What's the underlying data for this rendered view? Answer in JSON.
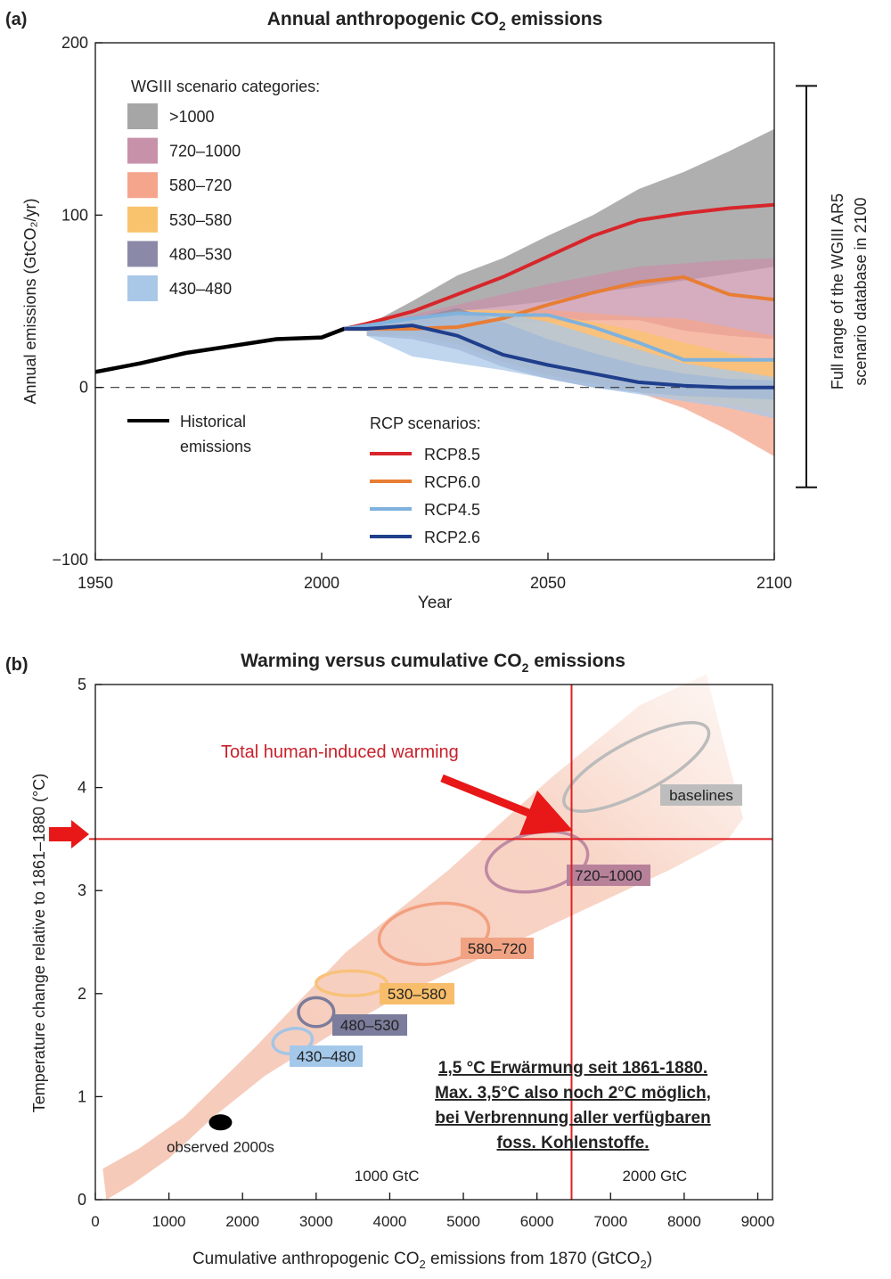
{
  "chart_data": [
    {
      "type": "line",
      "panel_label": "(a)",
      "title_main": "Annual anthropogenic CO",
      "title_sub": "2",
      "title_end": " emissions",
      "ylabel": "Annual emissions (GtCO₂/yr)",
      "xlabel": "Year",
      "xlim": [
        1950,
        2100
      ],
      "ylim": [
        -100,
        200
      ],
      "xticks": [
        "1950",
        "2000",
        "2050",
        "2100"
      ],
      "yticks": [
        "200",
        "100",
        "0",
        "−100"
      ],
      "band_legend_title": "WGIII scenario categories:",
      "bands": [
        {
          "name": ">1000",
          "color": "#a6a6a6",
          "x": [
            2010,
            2020,
            2030,
            2040,
            2050,
            2060,
            2070,
            2080,
            2090,
            2100
          ],
          "low": [
            34,
            40,
            44,
            47,
            50,
            55,
            58,
            62,
            66,
            70
          ],
          "high": [
            36,
            50,
            65,
            75,
            88,
            100,
            115,
            125,
            137,
            150
          ]
        },
        {
          "name": "720–1000",
          "color": "#c792a9",
          "x": [
            2010,
            2020,
            2030,
            2040,
            2050,
            2060,
            2070,
            2080,
            2090,
            2100
          ],
          "low": [
            33,
            35,
            37,
            38,
            38,
            39,
            39,
            33,
            30,
            28
          ],
          "high": [
            36,
            42,
            48,
            54,
            60,
            65,
            70,
            72,
            74,
            75
          ]
        },
        {
          "name": "580–720",
          "color": "#f4a58b",
          "x": [
            2010,
            2020,
            2030,
            2040,
            2050,
            2060,
            2070,
            2080,
            2090,
            2100
          ],
          "low": [
            30,
            32,
            28,
            15,
            8,
            3,
            -3,
            -12,
            -25,
            -40
          ],
          "high": [
            36,
            40,
            43,
            45,
            45,
            43,
            41,
            40,
            35,
            30
          ]
        },
        {
          "name": "530–580",
          "color": "#f9c36e",
          "x": [
            2010,
            2020,
            2030,
            2040,
            2050,
            2060,
            2070,
            2080,
            2090,
            2100
          ],
          "low": [
            30,
            30,
            25,
            15,
            7,
            2,
            -2,
            -6,
            -10,
            -15
          ],
          "high": [
            36,
            40,
            45,
            45,
            42,
            38,
            33,
            26,
            20,
            15
          ]
        },
        {
          "name": "480–530",
          "color": "#8a8aa8",
          "x": [
            2010,
            2020,
            2030,
            2040,
            2050,
            2060,
            2070,
            2080,
            2090,
            2100
          ],
          "low": [
            30,
            28,
            22,
            12,
            5,
            0,
            -3,
            -5,
            -6,
            -7
          ],
          "high": [
            36,
            40,
            46,
            38,
            28,
            20,
            13,
            8,
            5,
            4
          ]
        },
        {
          "name": "430–480",
          "color": "#a9c8e8",
          "x": [
            2010,
            2020,
            2030,
            2040,
            2050,
            2060,
            2070,
            2080,
            2090,
            2100
          ],
          "low": [
            30,
            18,
            14,
            10,
            5,
            0,
            -4,
            -8,
            -12,
            -18
          ],
          "high": [
            36,
            40,
            44,
            43,
            38,
            30,
            22,
            14,
            10,
            6
          ]
        }
      ],
      "historical_label_1": "Historical",
      "historical_label_2": "emissions",
      "historical": {
        "name": "Historical emissions",
        "color": "#000000",
        "x": [
          1950,
          1960,
          1970,
          1980,
          1990,
          2000,
          2005,
          2010
        ],
        "y": [
          9,
          14,
          20,
          24,
          28,
          29,
          34,
          34
        ]
      },
      "line_legend_title": "RCP scenarios:",
      "series": [
        {
          "name": "RCP8.5",
          "color": "#d7262b",
          "x": [
            2005,
            2010,
            2020,
            2030,
            2040,
            2050,
            2060,
            2070,
            2080,
            2090,
            2100
          ],
          "y": [
            34,
            37,
            44,
            54,
            64,
            76,
            88,
            97,
            101,
            104,
            106
          ]
        },
        {
          "name": "RCP6.0",
          "color": "#e87d34",
          "x": [
            2005,
            2010,
            2020,
            2030,
            2040,
            2050,
            2060,
            2070,
            2080,
            2090,
            2100
          ],
          "y": [
            34,
            34,
            34,
            35,
            40,
            48,
            55,
            61,
            64,
            54,
            51
          ]
        },
        {
          "name": "RCP4.5",
          "color": "#7fb2dd",
          "x": [
            2005,
            2010,
            2020,
            2030,
            2040,
            2050,
            2060,
            2070,
            2080,
            2090,
            2100
          ],
          "y": [
            34,
            36,
            40,
            43,
            42,
            42,
            35,
            26,
            16,
            16,
            16
          ]
        },
        {
          "name": "RCP2.6",
          "color": "#1f3e8c",
          "x": [
            2005,
            2010,
            2020,
            2030,
            2040,
            2050,
            2060,
            2070,
            2080,
            2090,
            2100
          ],
          "y": [
            34,
            34,
            36,
            30,
            19,
            13,
            8,
            3,
            1,
            0,
            0
          ]
        }
      ],
      "range_bar": {
        "low": -58,
        "high": 175,
        "label_1": "Full range of the WGIII AR5",
        "label_2": "scenario database in 2100"
      }
    },
    {
      "type": "scatter",
      "panel_label": "(b)",
      "title_main": "Warming versus cumulative CO",
      "title_sub": "2",
      "title_end": " emissions",
      "ylabel": "Temperature change relative to 1861–1880 (°C)",
      "xlabel_main": "Cumulative anthropogenic CO",
      "xlabel_sub": "2",
      "xlabel_mid": " emissions from 1870  (GtCO",
      "xlabel_sub2": "2",
      "xlabel_end": ")",
      "xlim": [
        0,
        9200
      ],
      "ylim": [
        0,
        5
      ],
      "xticks": [
        0,
        1000,
        2000,
        3000,
        4000,
        5000,
        6000,
        7000,
        8000,
        9000
      ],
      "yticks": [
        0,
        1,
        2,
        3,
        4,
        5
      ],
      "plume": {
        "color": "#f5cabb",
        "x": [
          100,
          600,
          1200,
          2200,
          3400,
          4800,
          6200,
          7400,
          8300,
          8800,
          8600,
          7800,
          6600,
          5400,
          4200,
          3200,
          2300,
          1600,
          1000,
          500,
          150
        ],
        "y": [
          0.3,
          0.5,
          0.8,
          1.5,
          2.4,
          3.2,
          4.1,
          4.8,
          5.1,
          3.7,
          3.5,
          3.2,
          2.8,
          2.4,
          2.0,
          1.6,
          1.2,
          0.8,
          0.4,
          0.15,
          0.0
        ]
      },
      "ellipses": [
        {
          "name": "baselines",
          "color": "#bbbbbb",
          "label_bg": "#bdbdbd",
          "label_color": "#222222",
          "cx": 7350,
          "cy": 4.2,
          "rx": 1100,
          "ry": 0.25,
          "angle": -28
        },
        {
          "name": "720–1000",
          "color": "#c08aa2",
          "label_bg": "#b7819a",
          "label_color": "#222222",
          "cx": 6000,
          "cy": 3.28,
          "rx": 700,
          "ry": 0.28,
          "angle": -12
        },
        {
          "name": "580–720",
          "color": "#f2a07f",
          "label_bg": "#f0a282",
          "label_color": "#222222",
          "cx": 4600,
          "cy": 2.58,
          "rx": 750,
          "ry": 0.29,
          "angle": -8
        },
        {
          "name": "530–580",
          "color": "#f8c27a",
          "label_bg": "#f7bd6a",
          "label_color": "#222222",
          "cx": 3480,
          "cy": 2.1,
          "rx": 480,
          "ry": 0.12,
          "angle": 0
        },
        {
          "name": "480–530",
          "color": "#7c7c9a",
          "label_bg": "#7c7c9c",
          "label_color": "#222222",
          "cx": 3000,
          "cy": 1.82,
          "rx": 240,
          "ry": 0.14,
          "angle": 0
        },
        {
          "name": "430–480",
          "color": "#a4c5e6",
          "label_bg": "#a4c8ea",
          "label_color": "#222222",
          "cx": 2680,
          "cy": 1.54,
          "rx": 270,
          "ry": 0.12,
          "angle": -10
        }
      ],
      "observed": {
        "label": "observed 2000s",
        "x": 1700,
        "y": 0.75
      },
      "gtc_labels": [
        {
          "text": "1000 GtC",
          "x": 3960
        },
        {
          "text": "2000 GtC",
          "x": 7600
        }
      ],
      "red_lines": {
        "x": 6470,
        "y": 3.5,
        "color": "#e02020"
      },
      "warming_label": "Total human-induced warming",
      "note_lines": [
        "1,5 °C Erwärmung seit 1861-1880.",
        "Max. 3,5°C also noch 2°C möglich,",
        "bei Verbrennung aller verfügbaren",
        "foss. Kohlenstoffe."
      ]
    }
  ]
}
